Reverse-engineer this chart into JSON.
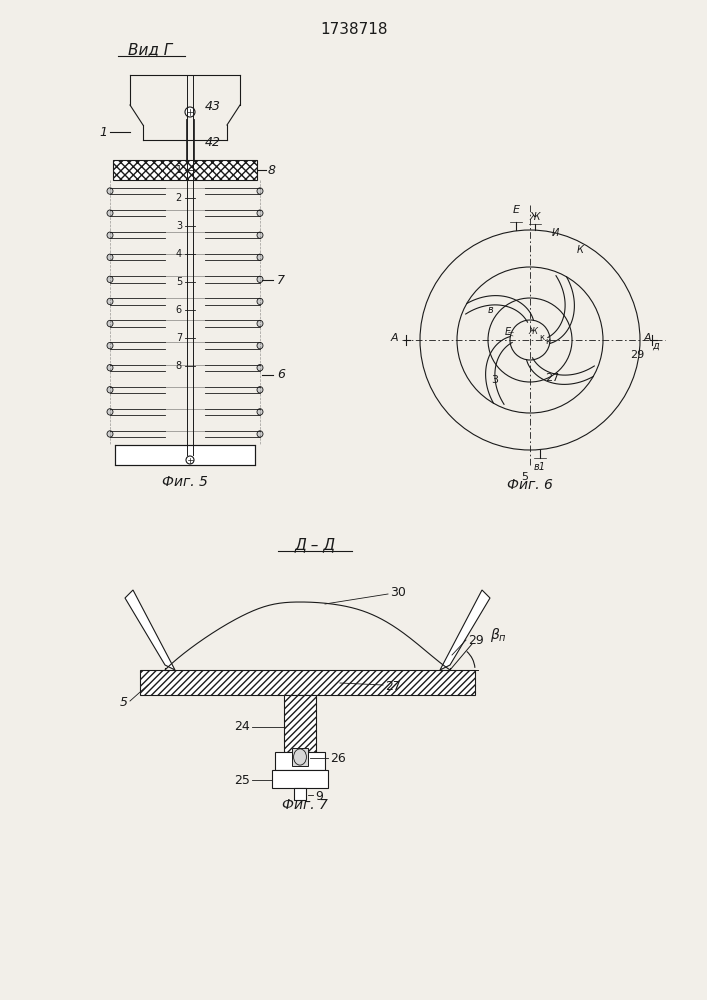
{
  "title": "1738718",
  "bg_color": "#f2efe9",
  "line_color": "#1a1a1a",
  "fig5_label": "Фиг. 5",
  "fig6_label": "Фиг. 6",
  "fig7_label": "Фиг. 7",
  "vid_g_label": "Вид Г",
  "dd_label": "Д – Д"
}
